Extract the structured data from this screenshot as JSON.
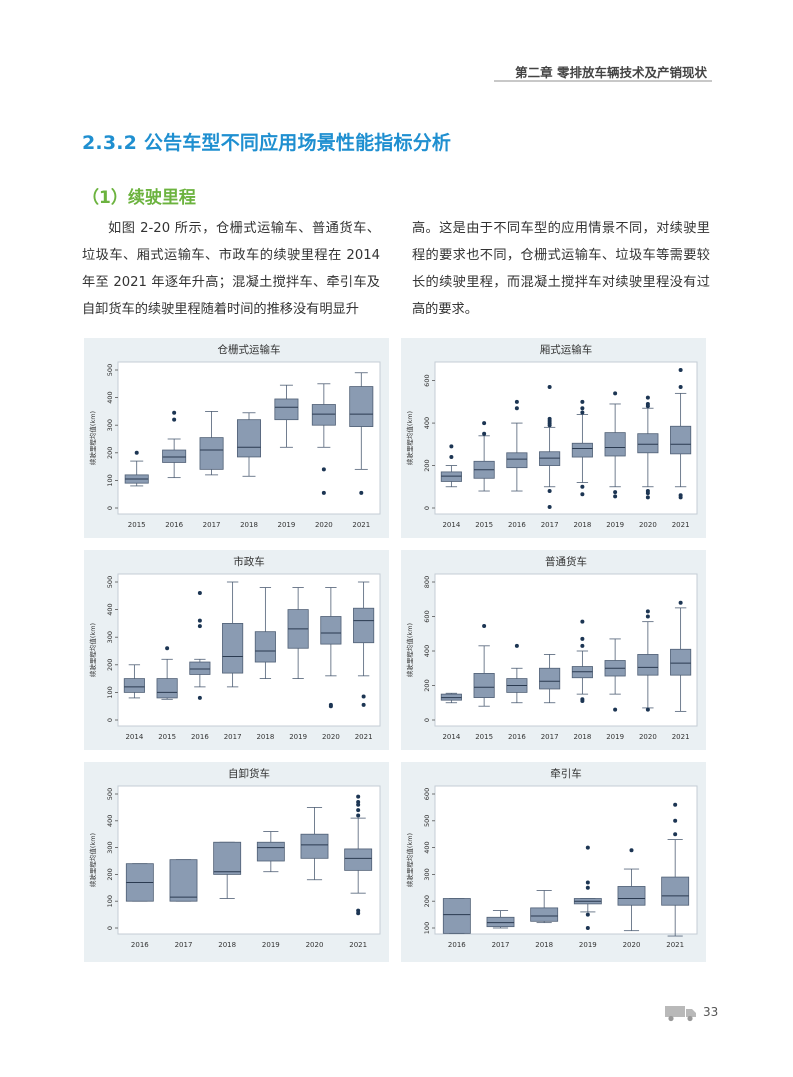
{
  "header": {
    "chapter": "第二章  零排放车辆技术及产销现状"
  },
  "section": {
    "title": "2.3.2 公告车型不同应用场景性能指标分析",
    "subtitle": "（1）续驶里程"
  },
  "body": {
    "left": "如图 2-20 所示，仓栅式运输车、普通货车、垃圾车、厢式运输车、市政车的续驶里程在 2014 年至 2021 年逐年升高；混凝土搅拌车、牵引车及自卸货车的续驶里程随着时间的推移没有明显升",
    "right": "高。这是由于不同车型的应用情景不同，对续驶里程的要求也不同，仓栅式运输车、垃圾车等需要较长的续驶里程，而混凝土搅拌车对续驶里程没有过高的要求。"
  },
  "footer": {
    "page_number": "33",
    "icon": "truck-icon"
  },
  "colors": {
    "box": "#8a9bb2",
    "box_stroke": "#4f5f75",
    "outlier": "#1c3553",
    "panel_bg": "#eaf0f3",
    "title_blue": "#1f8fd0",
    "title_green": "#6cb33f"
  },
  "chart_data": [
    {
      "type": "box",
      "title": "仓栅式运输车",
      "ylabel": "续驶里程均值(km)",
      "ylim": [
        0,
        500
      ],
      "yticks": [
        0,
        100,
        200,
        300,
        400,
        500
      ],
      "categories": [
        "2015",
        "2016",
        "2017",
        "2018",
        "2019",
        "2020",
        "2021"
      ],
      "boxes": [
        {
          "min": 80,
          "q1": 90,
          "median": 105,
          "q3": 120,
          "max": 170,
          "outliers": [
            200
          ]
        },
        {
          "min": 110,
          "q1": 165,
          "median": 185,
          "q3": 210,
          "max": 250,
          "outliers": [
            320,
            345
          ]
        },
        {
          "min": 120,
          "q1": 140,
          "median": 210,
          "q3": 255,
          "max": 350,
          "outliers": []
        },
        {
          "min": 115,
          "q1": 185,
          "median": 220,
          "q3": 320,
          "max": 345,
          "outliers": []
        },
        {
          "min": 220,
          "q1": 320,
          "median": 365,
          "q3": 395,
          "max": 445,
          "outliers": []
        },
        {
          "min": 220,
          "q1": 300,
          "median": 340,
          "q3": 375,
          "max": 450,
          "outliers": [
            55,
            140
          ]
        },
        {
          "min": 140,
          "q1": 295,
          "median": 340,
          "q3": 440,
          "max": 490,
          "outliers": [
            55
          ]
        }
      ]
    },
    {
      "type": "box",
      "title": "厢式运输车",
      "ylabel": "续驶里程均值(km)",
      "ylim": [
        0,
        650
      ],
      "yticks": [
        0,
        200,
        400,
        600
      ],
      "categories": [
        "2014",
        "2015",
        "2016",
        "2017",
        "2018",
        "2019",
        "2020",
        "2021"
      ],
      "boxes": [
        {
          "min": 100,
          "q1": 125,
          "median": 150,
          "q3": 170,
          "max": 200,
          "outliers": [
            240,
            290
          ]
        },
        {
          "min": 80,
          "q1": 140,
          "median": 180,
          "q3": 220,
          "max": 340,
          "outliers": [
            350,
            400
          ]
        },
        {
          "min": 80,
          "q1": 190,
          "median": 230,
          "q3": 260,
          "max": 400,
          "outliers": [
            470,
            500
          ]
        },
        {
          "min": 100,
          "q1": 200,
          "median": 235,
          "q3": 265,
          "max": 380,
          "outliers": [
            5,
            80,
            390,
            400,
            410,
            420,
            570
          ]
        },
        {
          "min": 120,
          "q1": 240,
          "median": 280,
          "q3": 305,
          "max": 440,
          "outliers": [
            65,
            100,
            450,
            470,
            500
          ]
        },
        {
          "min": 100,
          "q1": 245,
          "median": 285,
          "q3": 355,
          "max": 490,
          "outliers": [
            55,
            75,
            540
          ]
        },
        {
          "min": 100,
          "q1": 260,
          "median": 300,
          "q3": 350,
          "max": 470,
          "outliers": [
            50,
            70,
            80,
            480,
            490,
            520
          ]
        },
        {
          "min": 100,
          "q1": 255,
          "median": 300,
          "q3": 385,
          "max": 540,
          "outliers": [
            50,
            60,
            570,
            650
          ]
        }
      ]
    },
    {
      "type": "box",
      "title": "市政车",
      "ylabel": "续驶里程均值(km)",
      "ylim": [
        0,
        500
      ],
      "yticks": [
        0,
        100,
        200,
        300,
        400,
        500
      ],
      "categories": [
        "2014",
        "2015",
        "2016",
        "2017",
        "2018",
        "2019",
        "2020",
        "2021"
      ],
      "boxes": [
        {
          "min": 80,
          "q1": 100,
          "median": 120,
          "q3": 150,
          "max": 200,
          "outliers": []
        },
        {
          "min": 75,
          "q1": 80,
          "median": 100,
          "q3": 150,
          "max": 220,
          "outliers": [
            260
          ]
        },
        {
          "min": 120,
          "q1": 165,
          "median": 185,
          "q3": 210,
          "max": 220,
          "outliers": [
            80,
            340,
            360,
            460
          ]
        },
        {
          "min": 120,
          "q1": 170,
          "median": 230,
          "q3": 350,
          "max": 500,
          "outliers": []
        },
        {
          "min": 150,
          "q1": 210,
          "median": 250,
          "q3": 320,
          "max": 480,
          "outliers": []
        },
        {
          "min": 150,
          "q1": 260,
          "median": 330,
          "q3": 400,
          "max": 480,
          "outliers": []
        },
        {
          "min": 160,
          "q1": 275,
          "median": 315,
          "q3": 375,
          "max": 480,
          "outliers": [
            50,
            55
          ]
        },
        {
          "min": 160,
          "q1": 280,
          "median": 360,
          "q3": 405,
          "max": 500,
          "outliers": [
            55,
            85
          ]
        }
      ]
    },
    {
      "type": "box",
      "title": "普通货车",
      "ylabel": "续驶里程均值(km)",
      "ylim": [
        0,
        800
      ],
      "yticks": [
        0,
        200,
        400,
        600,
        800
      ],
      "categories": [
        "2014",
        "2015",
        "2016",
        "2017",
        "2018",
        "2019",
        "2020",
        "2021"
      ],
      "boxes": [
        {
          "min": 100,
          "q1": 115,
          "median": 130,
          "q3": 150,
          "max": 155,
          "outliers": []
        },
        {
          "min": 80,
          "q1": 130,
          "median": 190,
          "q3": 270,
          "max": 430,
          "outliers": [
            545
          ]
        },
        {
          "min": 100,
          "q1": 160,
          "median": 200,
          "q3": 240,
          "max": 300,
          "outliers": [
            430
          ]
        },
        {
          "min": 100,
          "q1": 180,
          "median": 225,
          "q3": 300,
          "max": 380,
          "outliers": []
        },
        {
          "min": 150,
          "q1": 245,
          "median": 280,
          "q3": 310,
          "max": 400,
          "outliers": [
            110,
            120,
            430,
            470,
            570
          ]
        },
        {
          "min": 150,
          "q1": 255,
          "median": 300,
          "q3": 345,
          "max": 470,
          "outliers": [
            60
          ]
        },
        {
          "min": 70,
          "q1": 260,
          "median": 305,
          "q3": 380,
          "max": 570,
          "outliers": [
            60,
            600,
            630
          ]
        },
        {
          "min": 50,
          "q1": 260,
          "median": 330,
          "q3": 410,
          "max": 650,
          "outliers": [
            680
          ]
        }
      ]
    },
    {
      "type": "box",
      "title": "自卸货车",
      "ylabel": "续驶里程均值(km)",
      "ylim": [
        0,
        500
      ],
      "yticks": [
        0,
        100,
        200,
        300,
        400,
        500
      ],
      "categories": [
        "2016",
        "2017",
        "2018",
        "2019",
        "2020",
        "2021"
      ],
      "boxes": [
        {
          "min": 100,
          "q1": 100,
          "median": 170,
          "q3": 240,
          "max": 240,
          "outliers": []
        },
        {
          "min": 100,
          "q1": 100,
          "median": 115,
          "q3": 255,
          "max": 255,
          "outliers": []
        },
        {
          "min": 110,
          "q1": 200,
          "median": 210,
          "q3": 320,
          "max": 320,
          "outliers": []
        },
        {
          "min": 210,
          "q1": 250,
          "median": 300,
          "q3": 320,
          "max": 360,
          "outliers": []
        },
        {
          "min": 180,
          "q1": 260,
          "median": 310,
          "q3": 350,
          "max": 450,
          "outliers": []
        },
        {
          "min": 130,
          "q1": 215,
          "median": 260,
          "q3": 295,
          "max": 410,
          "outliers": [
            55,
            65,
            420,
            440,
            460,
            470,
            490
          ]
        }
      ]
    },
    {
      "type": "box",
      "title": "牵引车",
      "ylabel": "续驶里程均值(km)",
      "ylim": [
        100,
        600
      ],
      "yticks": [
        100,
        200,
        300,
        400,
        500,
        600
      ],
      "categories": [
        "2016",
        "2017",
        "2018",
        "2019",
        "2020",
        "2021"
      ],
      "boxes": [
        {
          "min": 80,
          "q1": 80,
          "median": 150,
          "q3": 210,
          "max": 210,
          "outliers": []
        },
        {
          "min": 100,
          "q1": 105,
          "median": 120,
          "q3": 140,
          "max": 165,
          "outliers": []
        },
        {
          "min": 120,
          "q1": 125,
          "median": 145,
          "q3": 175,
          "max": 240,
          "outliers": []
        },
        {
          "min": 160,
          "q1": 190,
          "median": 200,
          "q3": 210,
          "max": 210,
          "outliers": [
            100,
            150,
            250,
            270,
            400
          ]
        },
        {
          "min": 90,
          "q1": 185,
          "median": 210,
          "q3": 255,
          "max": 320,
          "outliers": [
            390
          ]
        },
        {
          "min": 70,
          "q1": 185,
          "median": 220,
          "q3": 290,
          "max": 430,
          "outliers": [
            450,
            500,
            560
          ]
        }
      ]
    }
  ]
}
